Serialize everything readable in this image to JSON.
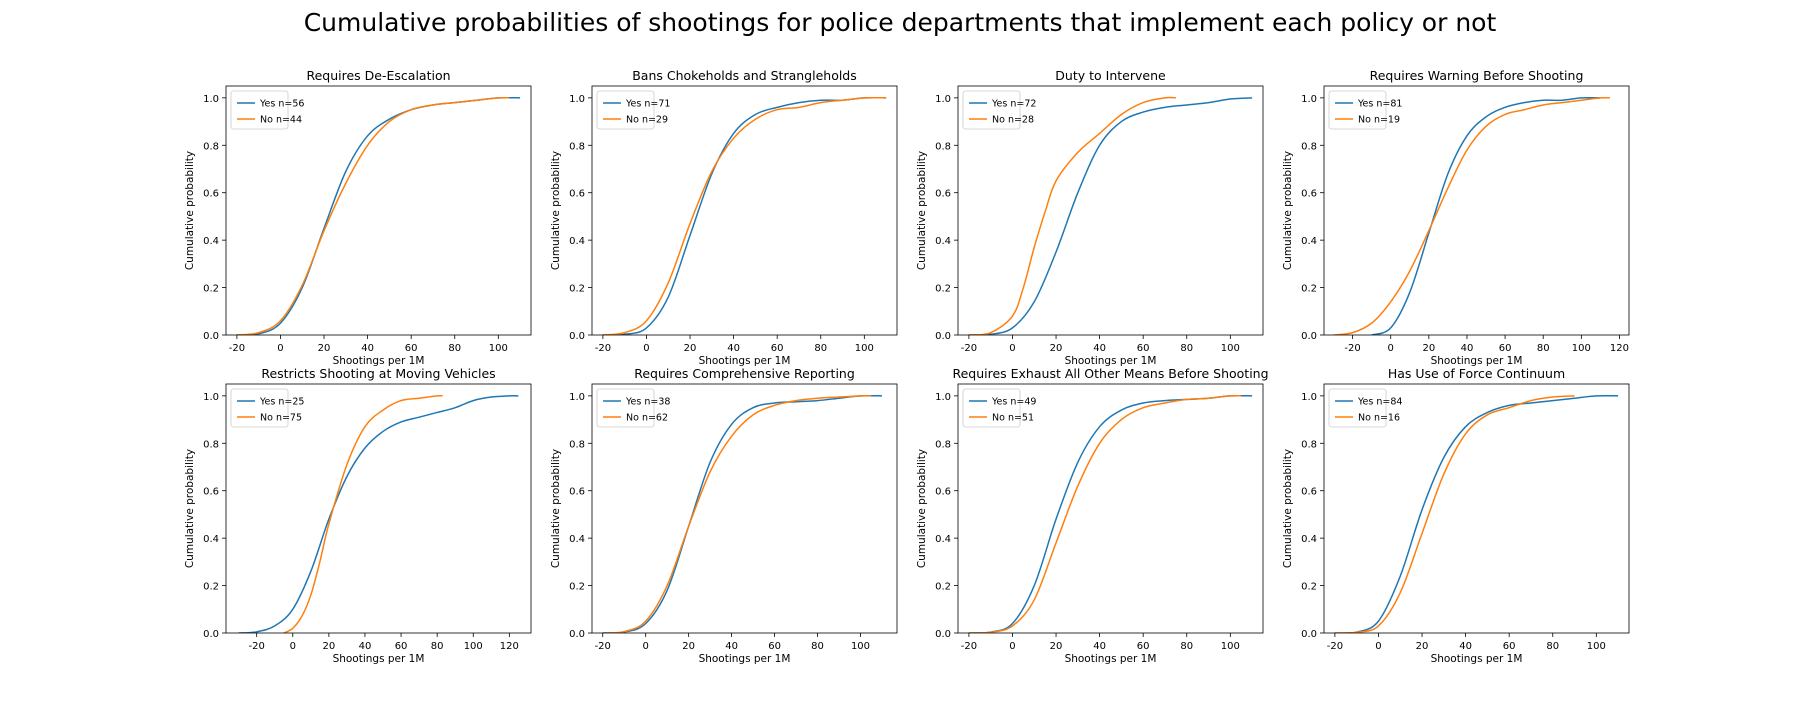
{
  "figure": {
    "title": "Cumulative probabilities of shootings for police departments that implement each policy or not"
  },
  "colors": {
    "yes": "#1f77b4",
    "no": "#ff7f0e"
  },
  "chart_data": [
    {
      "type": "line",
      "title": "Requires De-Escalation",
      "xlabel": "Shootings per 1M",
      "ylabel": "Cumulative probability",
      "xlim": [
        -25,
        115
      ],
      "ylim": [
        0,
        1.05
      ],
      "xticks": [
        -20,
        0,
        20,
        40,
        60,
        80,
        100
      ],
      "yticks": [
        0.0,
        0.2,
        0.4,
        0.6,
        0.8,
        1.0
      ],
      "legend_position": "upper-left",
      "series": [
        {
          "name": "Yes n=56",
          "color": "#1f77b4",
          "x": [
            -20,
            -10,
            0,
            10,
            20,
            30,
            40,
            50,
            60,
            70,
            80,
            90,
            100,
            110
          ],
          "y": [
            0.0,
            0.005,
            0.05,
            0.2,
            0.45,
            0.69,
            0.84,
            0.91,
            0.95,
            0.97,
            0.98,
            0.99,
            1.0,
            1.0
          ]
        },
        {
          "name": "No n=44",
          "color": "#ff7f0e",
          "x": [
            -20,
            -10,
            0,
            10,
            20,
            30,
            40,
            50,
            60,
            70,
            80,
            90,
            100,
            105
          ],
          "y": [
            0.0,
            0.01,
            0.06,
            0.21,
            0.44,
            0.64,
            0.8,
            0.9,
            0.95,
            0.97,
            0.98,
            0.99,
            1.0,
            1.0
          ]
        }
      ]
    },
    {
      "type": "line",
      "title": "Bans Chokeholds and Strangleholds",
      "xlabel": "Shootings per 1M",
      "ylabel": "Cumulative probability",
      "xlim": [
        -25,
        115
      ],
      "ylim": [
        0,
        1.05
      ],
      "xticks": [
        -20,
        0,
        20,
        40,
        60,
        80,
        100
      ],
      "yticks": [
        0.0,
        0.2,
        0.4,
        0.6,
        0.8,
        1.0
      ],
      "legend_position": "upper-left",
      "series": [
        {
          "name": "Yes n=71",
          "color": "#1f77b4",
          "x": [
            -20,
            -10,
            0,
            10,
            20,
            30,
            40,
            50,
            60,
            70,
            80,
            90,
            100,
            110
          ],
          "y": [
            0.0,
            0.003,
            0.03,
            0.16,
            0.42,
            0.68,
            0.85,
            0.93,
            0.96,
            0.98,
            0.99,
            0.99,
            1.0,
            1.0
          ]
        },
        {
          "name": "No n=29",
          "color": "#ff7f0e",
          "x": [
            -20,
            -10,
            0,
            10,
            20,
            30,
            40,
            50,
            60,
            70,
            80,
            90,
            100,
            110
          ],
          "y": [
            0.0,
            0.01,
            0.06,
            0.22,
            0.47,
            0.69,
            0.83,
            0.91,
            0.95,
            0.96,
            0.98,
            0.99,
            1.0,
            1.0
          ]
        }
      ]
    },
    {
      "type": "line",
      "title": "Duty to Intervene",
      "xlabel": "Shootings per 1M",
      "ylabel": "Cumulative probability",
      "xlim": [
        -25,
        115
      ],
      "ylim": [
        0,
        1.05
      ],
      "xticks": [
        -20,
        0,
        20,
        40,
        60,
        80,
        100
      ],
      "yticks": [
        0.0,
        0.2,
        0.4,
        0.6,
        0.8,
        1.0
      ],
      "legend_position": "upper-left",
      "series": [
        {
          "name": "Yes n=72",
          "color": "#1f77b4",
          "x": [
            -20,
            -10,
            0,
            10,
            20,
            30,
            40,
            50,
            60,
            70,
            80,
            90,
            100,
            110
          ],
          "y": [
            0.0,
            0.003,
            0.03,
            0.14,
            0.35,
            0.6,
            0.8,
            0.9,
            0.94,
            0.96,
            0.97,
            0.98,
            0.995,
            1.0
          ]
        },
        {
          "name": "No n=28",
          "color": "#ff7f0e",
          "x": [
            -20,
            -10,
            0,
            5,
            10,
            15,
            20,
            30,
            40,
            50,
            60,
            70,
            75
          ],
          "y": [
            0.0,
            0.01,
            0.08,
            0.2,
            0.37,
            0.52,
            0.65,
            0.77,
            0.85,
            0.93,
            0.98,
            1.0,
            1.0
          ]
        }
      ]
    },
    {
      "type": "line",
      "title": "Requires Warning Before Shooting",
      "xlabel": "Shootings per 1M",
      "ylabel": "Cumulative probability",
      "xlim": [
        -35,
        125
      ],
      "ylim": [
        0,
        1.05
      ],
      "xticks": [
        -20,
        0,
        20,
        40,
        60,
        80,
        100,
        120
      ],
      "yticks": [
        0.0,
        0.2,
        0.4,
        0.6,
        0.8,
        1.0
      ],
      "legend_position": "upper-left",
      "series": [
        {
          "name": "Yes n=81",
          "color": "#1f77b4",
          "x": [
            -10,
            0,
            10,
            20,
            30,
            40,
            50,
            60,
            70,
            80,
            90,
            100,
            110
          ],
          "y": [
            0.0,
            0.03,
            0.18,
            0.43,
            0.68,
            0.84,
            0.92,
            0.96,
            0.98,
            0.99,
            0.99,
            1.0,
            1.0
          ]
        },
        {
          "name": "No n=19",
          "color": "#ff7f0e",
          "x": [
            -30,
            -20,
            -10,
            0,
            10,
            20,
            30,
            40,
            50,
            60,
            70,
            80,
            90,
            100,
            110,
            115
          ],
          "y": [
            0.0,
            0.01,
            0.05,
            0.14,
            0.27,
            0.44,
            0.62,
            0.78,
            0.88,
            0.93,
            0.95,
            0.97,
            0.98,
            0.99,
            1.0,
            1.0
          ]
        }
      ]
    },
    {
      "type": "line",
      "title": "Restricts Shooting at Moving Vehicles",
      "xlabel": "Shootings per 1M",
      "ylabel": "Cumulative probability",
      "xlim": [
        -37,
        132
      ],
      "ylim": [
        0,
        1.05
      ],
      "xticks": [
        -20,
        0,
        20,
        40,
        60,
        80,
        100,
        120
      ],
      "yticks": [
        0.0,
        0.2,
        0.4,
        0.6,
        0.8,
        1.0
      ],
      "legend_position": "upper-left",
      "series": [
        {
          "name": "Yes n=25",
          "color": "#1f77b4",
          "x": [
            -30,
            -20,
            -10,
            0,
            10,
            20,
            30,
            40,
            50,
            60,
            70,
            80,
            90,
            100,
            110,
            120,
            125
          ],
          "y": [
            0.0,
            0.005,
            0.03,
            0.1,
            0.26,
            0.48,
            0.66,
            0.78,
            0.85,
            0.89,
            0.91,
            0.93,
            0.95,
            0.98,
            0.995,
            1.0,
            1.0
          ]
        },
        {
          "name": "No n=75",
          "color": "#ff7f0e",
          "x": [
            -5,
            0,
            5,
            10,
            15,
            20,
            30,
            40,
            50,
            60,
            70,
            80,
            83
          ],
          "y": [
            0.0,
            0.02,
            0.07,
            0.16,
            0.3,
            0.46,
            0.71,
            0.87,
            0.94,
            0.98,
            0.99,
            1.0,
            1.0
          ]
        }
      ]
    },
    {
      "type": "line",
      "title": "Requires Comprehensive Reporting",
      "xlabel": "Shootings per 1M",
      "ylabel": "Cumulative probability",
      "xlim": [
        -25,
        117
      ],
      "ylim": [
        0,
        1.05
      ],
      "xticks": [
        -20,
        0,
        20,
        40,
        60,
        80,
        100
      ],
      "yticks": [
        0.0,
        0.2,
        0.4,
        0.6,
        0.8,
        1.0
      ],
      "legend_position": "upper-left",
      "series": [
        {
          "name": "Yes n=38",
          "color": "#1f77b4",
          "x": [
            -20,
            -10,
            0,
            10,
            20,
            30,
            40,
            50,
            60,
            70,
            80,
            90,
            100,
            110
          ],
          "y": [
            0.0,
            0.004,
            0.04,
            0.18,
            0.45,
            0.72,
            0.88,
            0.95,
            0.97,
            0.975,
            0.98,
            0.99,
            1.0,
            1.0
          ]
        },
        {
          "name": "No n=62",
          "color": "#ff7f0e",
          "x": [
            -20,
            -10,
            0,
            10,
            20,
            30,
            40,
            50,
            60,
            70,
            80,
            90,
            100,
            105
          ],
          "y": [
            0.0,
            0.006,
            0.05,
            0.2,
            0.45,
            0.68,
            0.83,
            0.92,
            0.96,
            0.98,
            0.99,
            0.995,
            1.0,
            1.0
          ]
        }
      ]
    },
    {
      "type": "line",
      "title": "Requires Exhaust All Other Means Before Shooting",
      "xlabel": "Shootings per 1M",
      "ylabel": "Cumulative probability",
      "xlim": [
        -25,
        115
      ],
      "ylim": [
        0,
        1.05
      ],
      "xticks": [
        -20,
        0,
        20,
        40,
        60,
        80,
        100
      ],
      "yticks": [
        0.0,
        0.2,
        0.4,
        0.6,
        0.8,
        1.0
      ],
      "legend_position": "upper-left",
      "series": [
        {
          "name": "Yes n=49",
          "color": "#1f77b4",
          "x": [
            -20,
            -10,
            0,
            10,
            20,
            30,
            40,
            50,
            60,
            70,
            80,
            90,
            100,
            110
          ],
          "y": [
            0.0,
            0.004,
            0.04,
            0.2,
            0.48,
            0.72,
            0.87,
            0.94,
            0.97,
            0.98,
            0.985,
            0.99,
            1.0,
            1.0
          ]
        },
        {
          "name": "No n=51",
          "color": "#ff7f0e",
          "x": [
            -20,
            -10,
            0,
            10,
            20,
            30,
            40,
            50,
            60,
            70,
            80,
            90,
            100,
            105
          ],
          "y": [
            0.0,
            0.003,
            0.03,
            0.14,
            0.38,
            0.62,
            0.8,
            0.9,
            0.95,
            0.97,
            0.985,
            0.99,
            1.0,
            1.0
          ]
        }
      ]
    },
    {
      "type": "line",
      "title": "Has Use of Force Continuum",
      "xlabel": "Shootings per 1M",
      "ylabel": "Cumulative probability",
      "xlim": [
        -25,
        115
      ],
      "ylim": [
        0,
        1.05
      ],
      "xticks": [
        -20,
        0,
        20,
        40,
        60,
        80,
        100
      ],
      "yticks": [
        0.0,
        0.2,
        0.4,
        0.6,
        0.8,
        1.0
      ],
      "legend_position": "upper-left",
      "series": [
        {
          "name": "Yes n=84",
          "color": "#1f77b4",
          "x": [
            -20,
            -10,
            0,
            10,
            20,
            30,
            40,
            50,
            60,
            70,
            80,
            90,
            100,
            110
          ],
          "y": [
            0.0,
            0.004,
            0.05,
            0.24,
            0.52,
            0.74,
            0.87,
            0.93,
            0.96,
            0.97,
            0.98,
            0.99,
            1.0,
            1.0
          ]
        },
        {
          "name": "No n=16",
          "color": "#ff7f0e",
          "x": [
            -20,
            -10,
            0,
            10,
            20,
            30,
            40,
            50,
            60,
            70,
            80,
            90
          ],
          "y": [
            0.0,
            0.003,
            0.03,
            0.17,
            0.42,
            0.67,
            0.84,
            0.92,
            0.95,
            0.98,
            0.995,
            1.0
          ]
        }
      ]
    }
  ]
}
